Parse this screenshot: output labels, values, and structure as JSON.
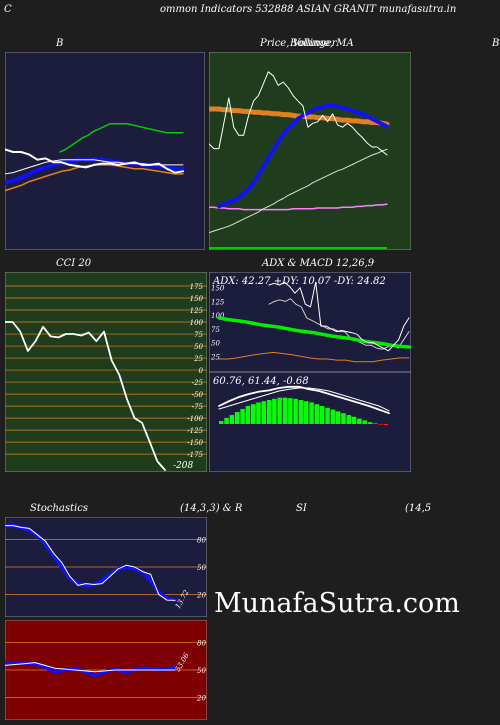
{
  "header": {
    "left_letter": "C",
    "title": "ommon  Indicators 532888  ASIAN  GRANIT munafasutra.in"
  },
  "titles": {
    "bollinger": "B",
    "price": "Price,  Volume,  MA",
    "price_overlay": "Bollinger",
    "right_edge": "B",
    "cci": "CCI 20",
    "adx_macd": "ADX  & MACD 12,26,9",
    "stoch": "Stochastics",
    "stoch_params": "(14,3,3) & R",
    "rsi": "SI",
    "rsi_params": "(14,5"
  },
  "watermark": "MunafaSutra.com",
  "colors": {
    "page_bg": "#1e1e1e",
    "navy_bg": "#1c1c3c",
    "green_bg": "#1f3d1d",
    "red_bg": "#7f0000",
    "blue": "#1010ff",
    "orange": "#e08020",
    "green_line": "#00cc00"
  },
  "cci": {
    "ticks": [
      "175",
      "150",
      "125",
      "100",
      "75",
      "50",
      "25",
      "0",
      "-25",
      "-50",
      "-75",
      "-100",
      "-125",
      "-150",
      "-175"
    ],
    "last_label": "-208"
  },
  "adx": {
    "label": "ADX: 42.27  +DY: 10.07 -DY: 24.82",
    "ticks": [
      "150",
      "125",
      "100",
      "75",
      "50",
      "25"
    ]
  },
  "macd": {
    "label": "60.76,  61.44,  -0.68"
  },
  "stoch": {
    "ticks": [
      "80",
      "50",
      "20"
    ],
    "last_label": "13.72"
  },
  "williams": {
    "ticks": [
      "80",
      "50",
      "20"
    ],
    "last_label": "53.06"
  },
  "chart_data": [
    {
      "type": "line",
      "panel": "Bollinger",
      "series": [
        {
          "values": [
            52,
            50,
            50,
            48,
            44,
            45,
            42,
            42,
            40,
            39,
            38,
            40,
            41,
            41,
            40,
            41,
            42,
            40,
            40,
            41,
            37,
            34,
            35
          ]
        },
        {
          "values": [
            33,
            34,
            36,
            38,
            40,
            42,
            43,
            44,
            44,
            44,
            44,
            44,
            43,
            42,
            42,
            41,
            41,
            41,
            40,
            40,
            40,
            40,
            40
          ]
        },
        {
          "values": [
            26,
            28,
            30,
            33,
            36,
            38,
            40,
            42,
            42,
            44,
            44,
            44,
            44,
            43,
            42,
            41,
            41,
            40,
            40,
            39,
            38,
            37,
            37
          ]
        },
        {
          "values": [
            20,
            22,
            24,
            27,
            29,
            31,
            33,
            35,
            36,
            38,
            39,
            40,
            40,
            40,
            39,
            38,
            37,
            37,
            36,
            35,
            34,
            33,
            33
          ]
        },
        {
          "values": [
            50,
            52,
            55,
            58,
            61,
            63,
            66,
            68,
            70,
            72,
            72,
            72,
            72,
            71,
            70,
            69,
            68,
            67,
            66,
            65,
            65,
            65,
            65
          ]
        }
      ]
    },
    {
      "type": "line",
      "panel": "Price, Volume, MA",
      "series": [
        {
          "values": [
            34,
            28,
            28,
            60,
            92,
            55,
            45,
            45,
            70,
            88,
            95,
            110,
            125,
            120,
            108,
            112,
            105,
            95,
            88,
            82,
            55,
            60,
            62,
            70,
            62,
            72,
            58,
            55,
            60,
            55,
            48,
            42,
            35,
            30,
            30,
            25,
            20
          ]
        },
        {
          "values": [
            78,
            78,
            78,
            77,
            77,
            76,
            76,
            75,
            75,
            74,
            74,
            73,
            73,
            72,
            72,
            71,
            71,
            70,
            69,
            69,
            68,
            68,
            67,
            67,
            66,
            66,
            65,
            64,
            64,
            63,
            63,
            62,
            62,
            61,
            61,
            60,
            59
          ]
        },
        {
          "values": [
            -45,
            -42,
            -40,
            -38,
            -35,
            -30,
            -25,
            -18,
            -10,
            0,
            10,
            20,
            30,
            40,
            48,
            55,
            60,
            66,
            70,
            73,
            76,
            79,
            80,
            82,
            83,
            82,
            80,
            79,
            77,
            75,
            73,
            71,
            68,
            65,
            62,
            59,
            56
          ]
        },
        {
          "values": [
            -78,
            -76,
            -74,
            -72,
            -70,
            -67,
            -64,
            -61,
            -58,
            -55,
            -52,
            -48,
            -45,
            -42,
            -38,
            -35,
            -31,
            -28,
            -25,
            -22,
            -19,
            -15,
            -12,
            -9,
            -6,
            -3,
            0,
            2,
            5,
            8,
            11,
            14,
            17,
            20,
            22,
            25,
            27
          ]
        },
        {
          "values": [
            -46,
            -46,
            -47,
            -47,
            -48,
            -48,
            -48,
            -49,
            -49,
            -49,
            -49,
            -49,
            -49,
            -49,
            -49,
            -49,
            -49,
            -48,
            -48,
            -48,
            -48,
            -48,
            -47,
            -47,
            -47,
            -47,
            -47,
            -46,
            -46,
            -46,
            -45,
            -45,
            -44,
            -44,
            -43,
            -43,
            -42
          ]
        }
      ]
    },
    {
      "type": "line",
      "panel": "CCI 20",
      "ylim": [
        -208,
        175
      ],
      "series": [
        {
          "values": [
            100,
            100,
            80,
            40,
            60,
            90,
            70,
            68,
            75,
            75,
            72,
            78,
            60,
            80,
            20,
            -10,
            -60,
            -100,
            -110,
            -150,
            -190,
            -208
          ]
        }
      ]
    },
    {
      "type": "line",
      "panel": "ADX",
      "ylim": [
        0,
        175
      ],
      "series": [
        {
          "values": [
            155,
            158,
            155,
            160,
            152,
            140,
            150,
            120,
            115,
            160,
            80,
            80,
            75,
            70,
            72,
            70,
            68,
            65,
            55,
            50,
            50,
            45,
            40,
            35,
            45,
            55,
            80,
            95
          ]
        },
        {
          "values": [
            120,
            125,
            128,
            125,
            130,
            120,
            115,
            95,
            90,
            85,
            80,
            75,
            75,
            70,
            70,
            60,
            55,
            50,
            45,
            45,
            40,
            38,
            42,
            45,
            40,
            55,
            70
          ]
        },
        {
          "values": [
            95,
            92,
            90,
            88,
            85,
            82,
            80,
            78,
            75,
            72,
            70,
            68,
            65,
            62,
            60,
            58,
            55,
            52,
            50,
            48,
            45,
            43,
            42
          ]
        },
        {
          "values": [
            20,
            20,
            22,
            25,
            28,
            30,
            32,
            30,
            28,
            25,
            22,
            20,
            20,
            18,
            18,
            15,
            15,
            15,
            18,
            20,
            22,
            22
          ]
        }
      ]
    },
    {
      "type": "bar",
      "panel": "MACD",
      "series": [
        {
          "values": [
            0.05,
            0.1,
            0.15,
            0.2,
            0.25,
            0.3,
            0.33,
            0.36,
            0.38,
            0.4,
            0.42,
            0.44,
            0.44,
            0.43,
            0.42,
            0.4,
            0.38,
            0.36,
            0.33,
            0.3,
            0.27,
            0.24,
            0.21,
            0.18,
            0.15,
            0.12,
            0.09,
            0.06,
            0.03,
            0.01,
            -0.01,
            -0.02
          ]
        },
        {
          "values": [
            0.3,
            0.38,
            0.45,
            0.5,
            0.54,
            0.56,
            0.6,
            0.62,
            0.62,
            0.58,
            0.55,
            0.5,
            0.45,
            0.4,
            0.35,
            0.3,
            0.24,
            0.18
          ]
        },
        {
          "values": [
            0.25,
            0.3,
            0.35,
            0.4,
            0.45,
            0.5,
            0.55,
            0.58,
            0.6,
            0.6,
            0.58,
            0.55,
            0.5,
            0.45,
            0.4,
            0.35,
            0.3,
            0.22
          ]
        }
      ]
    },
    {
      "type": "line",
      "panel": "Stochastics",
      "ylim": [
        0,
        100
      ],
      "series": [
        {
          "values": [
            95,
            95,
            93,
            92,
            85,
            78,
            65,
            55,
            40,
            30,
            32,
            31,
            32,
            40,
            48,
            52,
            50,
            45,
            42,
            20,
            14,
            13.72
          ]
        },
        {
          "values": [
            95,
            95,
            93,
            90,
            85,
            75,
            62,
            50,
            38,
            32,
            30,
            31,
            35,
            42,
            48,
            50,
            48,
            45,
            35,
            22,
            16,
            14
          ]
        }
      ]
    },
    {
      "type": "line",
      "panel": "Williams %R",
      "ylim": [
        0,
        100
      ],
      "series": [
        {
          "values": [
            58,
            58,
            58,
            57,
            53,
            48,
            50,
            52,
            48,
            44,
            48,
            51,
            48,
            50,
            52,
            51,
            50,
            53.06
          ]
        },
        {
          "values": [
            55,
            56,
            57,
            58,
            55,
            52,
            51,
            50,
            49,
            48,
            49,
            50,
            50,
            50,
            50,
            50,
            50,
            50
          ]
        }
      ]
    }
  ]
}
